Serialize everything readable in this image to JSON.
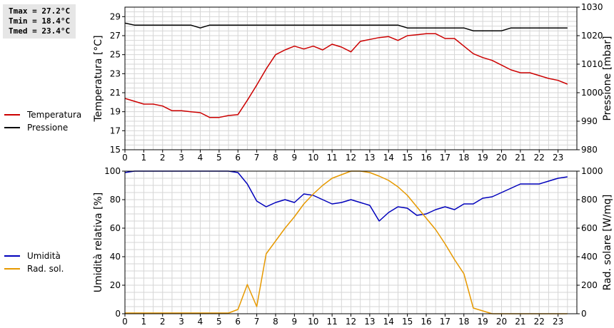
{
  "stats": {
    "tmax": "Tmax = 27.2°C",
    "tmin": "Tmin = 18.4°C",
    "tmed": "Tmed = 23.4°C"
  },
  "chart_data": [
    {
      "type": "line",
      "xlim": [
        0,
        24
      ],
      "x_ticks": [
        "0",
        "1",
        "2",
        "3",
        "4",
        "5",
        "6",
        "7",
        "8",
        "9",
        "10",
        "11",
        "12",
        "13",
        "14",
        "15",
        "16",
        "17",
        "18",
        "19",
        "20",
        "21",
        "22",
        "23"
      ],
      "grid": true,
      "left_axis": {
        "label": "Temperatura [°C]",
        "ylim": [
          15,
          30
        ],
        "ticks": [
          "15",
          "17",
          "19",
          "21",
          "23",
          "25",
          "27",
          "29"
        ]
      },
      "right_axis": {
        "label": "Pressione [mbar]",
        "ylim": [
          980,
          1030
        ],
        "ticks": [
          "980",
          "990",
          "1000",
          "1010",
          "1020",
          "1030"
        ]
      },
      "series": [
        {
          "name": "Temperatura",
          "axis": "left",
          "color": "#cc0000",
          "points": [
            [
              0,
              20.4
            ],
            [
              0.5,
              20.1
            ],
            [
              1,
              19.8
            ],
            [
              1.5,
              19.8
            ],
            [
              2,
              19.6
            ],
            [
              2.5,
              19.1
            ],
            [
              3,
              19.1
            ],
            [
              3.5,
              19.0
            ],
            [
              4,
              18.9
            ],
            [
              4.5,
              18.4
            ],
            [
              5,
              18.4
            ],
            [
              5.5,
              18.6
            ],
            [
              6,
              18.7
            ],
            [
              6.5,
              20.2
            ],
            [
              7,
              21.8
            ],
            [
              7.5,
              23.5
            ],
            [
              8,
              25.0
            ],
            [
              8.5,
              25.5
            ],
            [
              9,
              25.9
            ],
            [
              9.5,
              25.6
            ],
            [
              10,
              25.9
            ],
            [
              10.5,
              25.5
            ],
            [
              11,
              26.1
            ],
            [
              11.5,
              25.8
            ],
            [
              12,
              25.3
            ],
            [
              12.5,
              26.4
            ],
            [
              13,
              26.6
            ],
            [
              13.5,
              26.8
            ],
            [
              14,
              26.9
            ],
            [
              14.5,
              26.5
            ],
            [
              15,
              27.0
            ],
            [
              15.5,
              27.1
            ],
            [
              16,
              27.2
            ],
            [
              16.5,
              27.2
            ],
            [
              17,
              26.7
            ],
            [
              17.5,
              26.7
            ],
            [
              18,
              25.9
            ],
            [
              18.5,
              25.1
            ],
            [
              19,
              24.7
            ],
            [
              19.5,
              24.4
            ],
            [
              20,
              23.9
            ],
            [
              20.5,
              23.4
            ],
            [
              21,
              23.1
            ],
            [
              21.5,
              23.1
            ],
            [
              22,
              22.8
            ],
            [
              22.5,
              22.5
            ],
            [
              23,
              22.3
            ],
            [
              23.5,
              21.9
            ]
          ]
        },
        {
          "name": "Pressione",
          "axis": "right",
          "color": "#000000",
          "points": [
            [
              0,
              1024.4
            ],
            [
              0.5,
              1023.7
            ],
            [
              1,
              1023.7
            ],
            [
              2,
              1023.7
            ],
            [
              3,
              1023.7
            ],
            [
              3.5,
              1023.7
            ],
            [
              4,
              1022.7
            ],
            [
              4.5,
              1023.7
            ],
            [
              5,
              1023.7
            ],
            [
              6,
              1023.7
            ],
            [
              7,
              1023.7
            ],
            [
              8,
              1023.7
            ],
            [
              9,
              1023.7
            ],
            [
              10,
              1023.7
            ],
            [
              11,
              1023.7
            ],
            [
              12,
              1023.7
            ],
            [
              13,
              1023.7
            ],
            [
              14,
              1023.7
            ],
            [
              14.5,
              1023.7
            ],
            [
              15,
              1022.7
            ],
            [
              16,
              1022.7
            ],
            [
              17,
              1022.7
            ],
            [
              18,
              1022.7
            ],
            [
              18.5,
              1021.7
            ],
            [
              19,
              1021.7
            ],
            [
              20,
              1021.7
            ],
            [
              20.5,
              1022.7
            ],
            [
              21,
              1022.7
            ],
            [
              22,
              1022.7
            ],
            [
              23,
              1022.7
            ],
            [
              23.5,
              1022.7
            ]
          ]
        }
      ]
    },
    {
      "type": "line",
      "xlim": [
        0,
        24
      ],
      "x_ticks": [
        "0",
        "1",
        "2",
        "3",
        "4",
        "5",
        "6",
        "7",
        "8",
        "9",
        "10",
        "11",
        "12",
        "13",
        "14",
        "15",
        "16",
        "17",
        "18",
        "19",
        "20",
        "21",
        "22",
        "23"
      ],
      "grid": true,
      "left_axis": {
        "label": "Umidità relativa [%]",
        "ylim": [
          0,
          100
        ],
        "ticks": [
          "0",
          "20",
          "40",
          "60",
          "80",
          "100"
        ]
      },
      "right_axis": {
        "label": "Rad. solare [W/mq]",
        "ylim": [
          0,
          1000
        ],
        "ticks": [
          "0",
          "200",
          "400",
          "600",
          "800",
          "1000"
        ]
      },
      "series": [
        {
          "name": "Umidità",
          "axis": "left",
          "color": "#0000bb",
          "points": [
            [
              0,
              99
            ],
            [
              0.5,
              100
            ],
            [
              1,
              100
            ],
            [
              2,
              100
            ],
            [
              3,
              100
            ],
            [
              4,
              100
            ],
            [
              5,
              100
            ],
            [
              5.5,
              100
            ],
            [
              6,
              99
            ],
            [
              6.5,
              91
            ],
            [
              7,
              79
            ],
            [
              7.5,
              75
            ],
            [
              8,
              78
            ],
            [
              8.5,
              80
            ],
            [
              9,
              78
            ],
            [
              9.5,
              84
            ],
            [
              10,
              83
            ],
            [
              10.5,
              80
            ],
            [
              11,
              77
            ],
            [
              11.5,
              78
            ],
            [
              12,
              80
            ],
            [
              12.5,
              78
            ],
            [
              13,
              76
            ],
            [
              13.5,
              65
            ],
            [
              14,
              71
            ],
            [
              14.5,
              75
            ],
            [
              15,
              74
            ],
            [
              15.5,
              69
            ],
            [
              16,
              70
            ],
            [
              16.5,
              73
            ],
            [
              17,
              75
            ],
            [
              17.5,
              73
            ],
            [
              18,
              77
            ],
            [
              18.5,
              77
            ],
            [
              19,
              81
            ],
            [
              19.5,
              82
            ],
            [
              20,
              85
            ],
            [
              20.5,
              88
            ],
            [
              21,
              91
            ],
            [
              21.5,
              91
            ],
            [
              22,
              91
            ],
            [
              22.5,
              93
            ],
            [
              23,
              95
            ],
            [
              23.5,
              96
            ]
          ]
        },
        {
          "name": "Rad. sol.",
          "axis": "right",
          "color": "#e69900",
          "points": [
            [
              0,
              5
            ],
            [
              1,
              5
            ],
            [
              2,
              5
            ],
            [
              3,
              5
            ],
            [
              4,
              5
            ],
            [
              5,
              5
            ],
            [
              5.5,
              5
            ],
            [
              6,
              30
            ],
            [
              6.5,
              205
            ],
            [
              7,
              50
            ],
            [
              7.5,
              420
            ],
            [
              8,
              510
            ],
            [
              8.5,
              600
            ],
            [
              9,
              680
            ],
            [
              9.5,
              770
            ],
            [
              10,
              840
            ],
            [
              10.5,
              900
            ],
            [
              11,
              950
            ],
            [
              11.5,
              975
            ],
            [
              12,
              1000
            ],
            [
              12.5,
              1000
            ],
            [
              13,
              990
            ],
            [
              13.5,
              965
            ],
            [
              14,
              935
            ],
            [
              14.5,
              890
            ],
            [
              15,
              830
            ],
            [
              15.5,
              750
            ],
            [
              16,
              670
            ],
            [
              16.5,
              590
            ],
            [
              17,
              490
            ],
            [
              17.5,
              380
            ],
            [
              18,
              280
            ],
            [
              18.5,
              40
            ],
            [
              19,
              20
            ],
            [
              19.5,
              0
            ],
            [
              20,
              0
            ],
            [
              21,
              0
            ],
            [
              22,
              0
            ],
            [
              23,
              0
            ],
            [
              23.5,
              0
            ]
          ]
        }
      ]
    }
  ]
}
